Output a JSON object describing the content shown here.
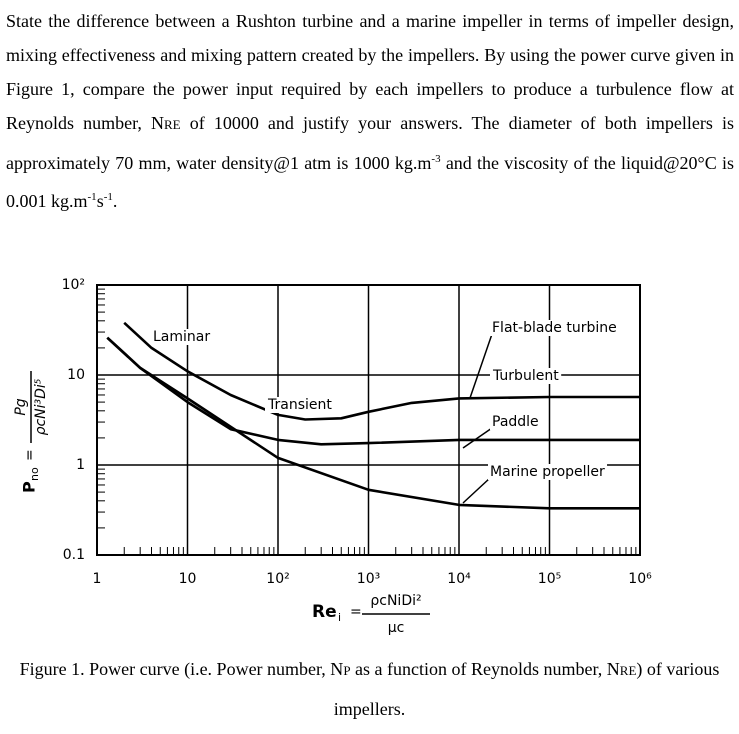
{
  "question": [
    {
      "text": "State the difference between a Rushton turbine and a marine impeller in terms of impeller design, mixing effectiveness and mixing pattern created by the impellers. By using the power curve given in Figure 1, compare the power input required by each impellers to produce a turbulence flow at Reynolds number, N"
    },
    {
      "sub": "RE"
    },
    {
      "text": " of 10000 and justify your answers. The diameter of both impellers is approximately 70 mm, water density@1 atm is 1000 kg.m"
    },
    {
      "sup": "-3"
    },
    {
      "text": " and the viscosity of the liquid@20°C is 0.001 kg.m"
    },
    {
      "sup": "-1"
    },
    {
      "text": "s"
    },
    {
      "sup": "-1"
    },
    {
      "text": "."
    }
  ],
  "chart_data": {
    "type": "line",
    "xlog": true,
    "ylog": true,
    "grid": true,
    "xlim": [
      1,
      1000000
    ],
    "ylim": [
      0.1,
      100
    ],
    "xticks": [
      1,
      10,
      {
        "value": 100,
        "label": "10²"
      },
      {
        "value": 1000,
        "label": "10³"
      },
      {
        "value": 10000,
        "label": "10⁴"
      },
      {
        "value": 100000,
        "label": "10⁵"
      },
      {
        "value": 1000000,
        "label": "10⁶"
      }
    ],
    "yticks": [
      0.1,
      1,
      10,
      {
        "value": 100,
        "label": "10²"
      }
    ],
    "xlabel": {
      "lhs": "Re",
      "lhs_sub": "i",
      "relation": "=",
      "numerator": "ρcNiDi²",
      "denominator": "μc"
    },
    "ylabel": {
      "lhs": "P",
      "lhs_sub": "no",
      "relation": "=",
      "numerator": "Pg",
      "denominator": "ρcNi³Di⁵"
    },
    "annotations": [
      "Laminar",
      "Transient",
      "Turbulent"
    ],
    "series": [
      {
        "name": "Flat-blade turbine",
        "color": "#000000",
        "x": [
          2,
          4,
          10,
          30,
          100,
          200,
          500,
          1000,
          3000,
          10000,
          100000,
          1000000
        ],
        "values": [
          38,
          20,
          11,
          6,
          3.6,
          3.2,
          3.3,
          3.9,
          4.9,
          5.5,
          5.7,
          5.7
        ]
      },
      {
        "name": "Paddle",
        "color": "#000000",
        "x": [
          1.3,
          3,
          10,
          30,
          100,
          300,
          1000,
          10000,
          1000000
        ],
        "values": [
          26,
          12,
          5,
          2.5,
          1.9,
          1.7,
          1.75,
          1.9,
          1.9
        ]
      },
      {
        "name": "Marine propeller",
        "color": "#000000",
        "x": [
          1.3,
          3,
          10,
          100,
          1000,
          10000,
          100000,
          1000000
        ],
        "values": [
          26,
          12,
          5.5,
          1.2,
          0.53,
          0.36,
          0.33,
          0.33
        ]
      }
    ]
  },
  "caption": [
    {
      "text": "Figure 1. Power curve (i.e. Power number, N"
    },
    {
      "sub": "P"
    },
    {
      "text": " as a function of Reynolds number, N"
    },
    {
      "sub": "RE"
    },
    {
      "text": ") of various impellers."
    }
  ]
}
